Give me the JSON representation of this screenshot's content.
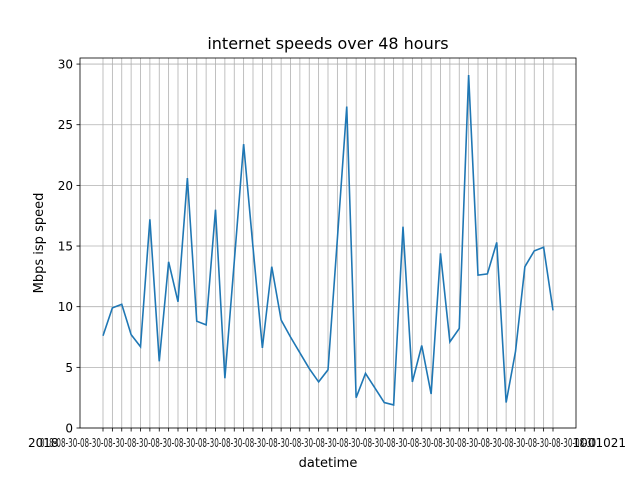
{
  "chart_data": {
    "type": "line",
    "title": "internet speeds over 48 hours",
    "xlabel": "datetime",
    "ylabel": "Mbps isp speed",
    "ylim": [
      0,
      30.5
    ],
    "yticks": [
      0,
      5,
      10,
      15,
      20,
      25,
      30
    ],
    "grid": true,
    "line_color": "#1f77b4",
    "x_tick_labels_note": "2021-08-30 2021-08-30 ... (overlapping, illegible)",
    "x_tick_first": "2018",
    "x_tick_last": "1001021",
    "values": [
      7.6,
      9.9,
      10.2,
      7.7,
      6.7,
      17.2,
      5.5,
      13.7,
      10.4,
      20.6,
      8.8,
      8.5,
      18.0,
      4.1,
      13.7,
      23.4,
      14.9,
      6.6,
      13.3,
      8.9,
      7.5,
      6.2,
      4.9,
      3.8,
      4.8,
      15.6,
      26.5,
      2.5,
      4.5,
      3.3,
      2.1,
      1.9,
      16.6,
      3.8,
      6.8,
      2.8,
      14.4,
      7.1,
      8.2,
      29.1,
      12.6,
      12.7,
      15.3,
      2.1,
      6.3,
      13.3,
      14.6,
      14.9,
      9.7
    ]
  }
}
